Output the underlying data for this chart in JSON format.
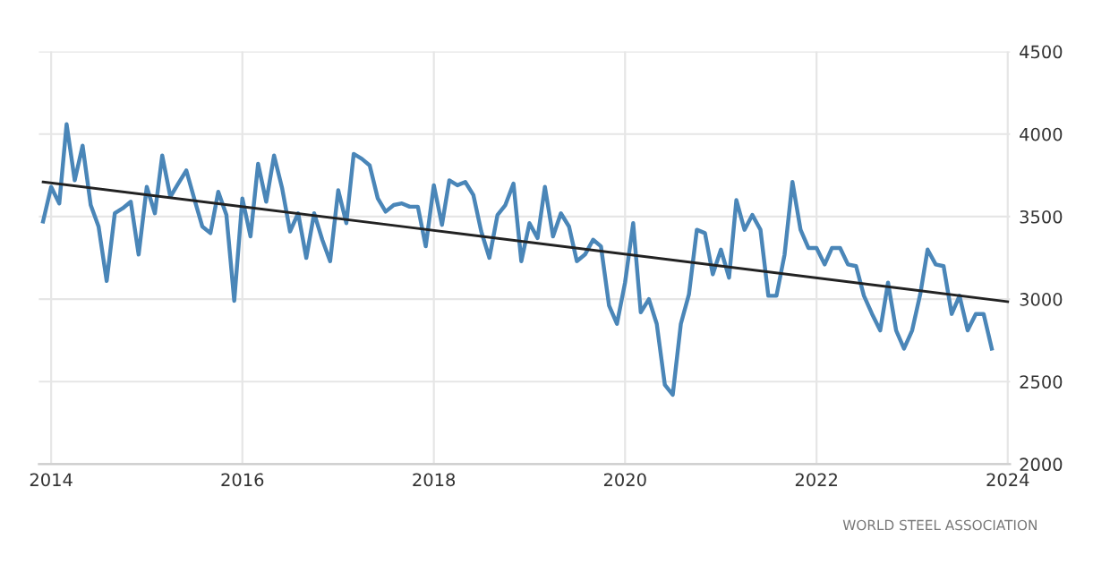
{
  "chart_data": {
    "type": "line",
    "x": [
      "2013-12",
      "2014-01",
      "2014-02",
      "2014-03",
      "2014-04",
      "2014-05",
      "2014-06",
      "2014-07",
      "2014-08",
      "2014-09",
      "2014-10",
      "2014-11",
      "2014-12",
      "2015-01",
      "2015-02",
      "2015-03",
      "2015-04",
      "2015-05",
      "2015-06",
      "2015-07",
      "2015-08",
      "2015-09",
      "2015-10",
      "2015-11",
      "2015-12",
      "2016-01",
      "2016-02",
      "2016-03",
      "2016-04",
      "2016-05",
      "2016-06",
      "2016-07",
      "2016-08",
      "2016-09",
      "2016-10",
      "2016-11",
      "2016-12",
      "2017-01",
      "2017-02",
      "2017-03",
      "2017-04",
      "2017-05",
      "2017-06",
      "2017-07",
      "2017-08",
      "2017-09",
      "2017-10",
      "2017-11",
      "2017-12",
      "2018-01",
      "2018-02",
      "2018-03",
      "2018-04",
      "2018-05",
      "2018-06",
      "2018-07",
      "2018-08",
      "2018-09",
      "2018-10",
      "2018-11",
      "2018-12",
      "2019-01",
      "2019-02",
      "2019-03",
      "2019-04",
      "2019-05",
      "2019-06",
      "2019-07",
      "2019-08",
      "2019-09",
      "2019-10",
      "2019-11",
      "2019-12",
      "2020-01",
      "2020-02",
      "2020-03",
      "2020-04",
      "2020-05",
      "2020-06",
      "2020-07",
      "2020-08",
      "2020-09",
      "2020-10",
      "2020-11",
      "2020-12",
      "2021-01",
      "2021-02",
      "2021-03",
      "2021-04",
      "2021-05",
      "2021-06",
      "2021-07",
      "2021-08",
      "2021-09",
      "2021-10",
      "2021-11",
      "2021-12",
      "2022-01",
      "2022-02",
      "2022-03",
      "2022-04",
      "2022-05",
      "2022-06",
      "2022-07",
      "2022-08",
      "2022-09",
      "2022-10",
      "2022-11",
      "2022-12",
      "2023-01",
      "2023-02",
      "2023-03",
      "2023-04",
      "2023-05",
      "2023-06",
      "2023-07",
      "2023-08",
      "2023-09",
      "2023-10",
      "2023-11"
    ],
    "series": [
      {
        "color": "#4a86b8",
        "values": [
          3470,
          3680,
          3580,
          4060,
          3720,
          3930,
          3570,
          3440,
          3110,
          3520,
          3550,
          3590,
          3270,
          3680,
          3520,
          3870,
          3620,
          3700,
          3780,
          3610,
          3440,
          3400,
          3650,
          3510,
          2990,
          3610,
          3380,
          3820,
          3590,
          3870,
          3670,
          3410,
          3520,
          3250,
          3520,
          3360,
          3230,
          3660,
          3460,
          3880,
          3850,
          3810,
          3610,
          3530,
          3570,
          3580,
          3560,
          3560,
          3320,
          3690,
          3450,
          3720,
          3690,
          3710,
          3630,
          3410,
          3250,
          3510,
          3570,
          3700,
          3230,
          3460,
          3370,
          3680,
          3380,
          3520,
          3440,
          3230,
          3270,
          3360,
          3320,
          2960,
          2850,
          3100,
          3460,
          2920,
          3000,
          2850,
          2480,
          2420,
          2850,
          3030,
          3420,
          3400,
          3150,
          3300,
          3130,
          3600,
          3420,
          3510,
          3420,
          3020,
          3020,
          3270,
          3710,
          3420,
          3310,
          3310,
          3210,
          3310,
          3310,
          3210,
          3200,
          3020,
          2910,
          2810,
          3100,
          2810,
          2700,
          2810,
          3030,
          3300,
          3210,
          3200,
          2910,
          3020,
          2810,
          2910,
          2910,
          2700
        ]
      },
      {
        "type": "line",
        "color": "#222222",
        "x": [
          "2013-12",
          "2024-01"
        ],
        "values": [
          3710,
          2985
        ]
      }
    ],
    "xlim": [
      "2013-11-15",
      "2024-01-10"
    ],
    "xticks": [
      "2014",
      "2016",
      "2018",
      "2020",
      "2022",
      "2024"
    ],
    "ylim": [
      2000,
      4500
    ],
    "yticks": [
      2000,
      2500,
      3000,
      3500,
      4000,
      4500
    ],
    "grid": true,
    "annotations": [
      "WORLD STEEL ASSOCIATION"
    ]
  }
}
